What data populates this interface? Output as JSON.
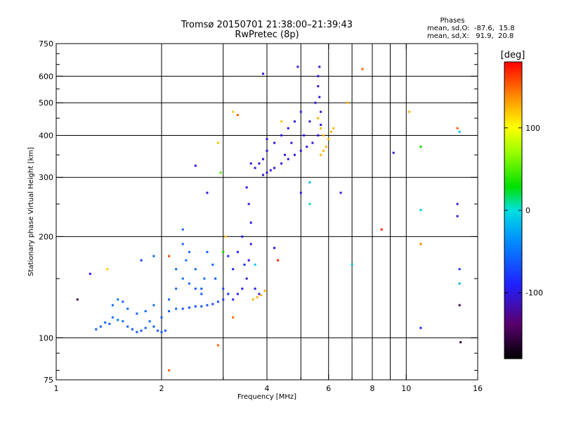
{
  "chart_data": {
    "type": "scatter",
    "title": "Tromsø 20150701 21:38:00–21:39:43",
    "subtitle": "RwPretec (8p)",
    "xlabel": "Frequency [MHz]",
    "ylabel": "Stationary phase Virtual Height [km]",
    "x_scale": "log",
    "y_scale": "log",
    "xlim": [
      1,
      16
    ],
    "ylim": [
      75,
      750
    ],
    "x_ticks": [
      1,
      2,
      4,
      6,
      8,
      10,
      16
    ],
    "x_tick_labels": [
      "1",
      "2",
      "4",
      "6",
      "8",
      "10",
      "16"
    ],
    "x_minor_ticks": [
      3,
      5,
      7,
      9
    ],
    "y_ticks": [
      75,
      100,
      200,
      300,
      400,
      500,
      600,
      750
    ],
    "y_tick_labels": [
      "75",
      "100",
      "200",
      "300",
      "400",
      "500",
      "600",
      "750"
    ],
    "y_minor_ticks": [
      80,
      90,
      150,
      250,
      350,
      450,
      550,
      650,
      700
    ],
    "grid": true,
    "legend": {
      "heading": "Phases",
      "lines": [
        "mean, sd,O:  -87.6,  15.8",
        "mean, sd,X:   91.9,  20.8"
      ],
      "placement": "top-right"
    },
    "colorbar": {
      "label": "[deg]",
      "range": [
        -180,
        180
      ],
      "ticks": [
        100,
        0,
        -100
      ],
      "tick_labels": [
        "100",
        "0",
        "-100"
      ],
      "colormap": "rainbow"
    },
    "series": [
      {
        "points": [
          [
            1.3,
            106,
            -60
          ],
          [
            1.34,
            108,
            -60
          ],
          [
            1.38,
            111,
            -55
          ],
          [
            1.42,
            110,
            -55
          ],
          [
            1.45,
            115,
            -50
          ],
          [
            1.5,
            113,
            -50
          ],
          [
            1.55,
            112,
            -55
          ],
          [
            1.6,
            108,
            -60
          ],
          [
            1.65,
            106,
            -65
          ],
          [
            1.7,
            104,
            -65
          ],
          [
            1.75,
            105,
            -65
          ],
          [
            1.8,
            107,
            -60
          ],
          [
            1.85,
            112,
            -55
          ],
          [
            1.9,
            108,
            -60
          ],
          [
            1.95,
            105,
            -65
          ],
          [
            2.0,
            104,
            -65
          ],
          [
            2.05,
            105,
            -65
          ],
          [
            1.45,
            125,
            -55
          ],
          [
            1.5,
            130,
            -50
          ],
          [
            1.55,
            128,
            -55
          ],
          [
            1.6,
            122,
            -55
          ],
          [
            1.7,
            118,
            -60
          ],
          [
            1.8,
            120,
            -55
          ],
          [
            1.9,
            125,
            -55
          ],
          [
            2.0,
            115,
            -60
          ],
          [
            2.1,
            120,
            -60
          ],
          [
            2.2,
            122,
            -60
          ],
          [
            2.3,
            122,
            -65
          ],
          [
            2.4,
            123,
            -65
          ],
          [
            2.5,
            124,
            -65
          ],
          [
            2.6,
            124,
            -65
          ],
          [
            2.7,
            125,
            -70
          ],
          [
            2.8,
            126,
            -70
          ],
          [
            2.9,
            128,
            -70
          ],
          [
            3.0,
            130,
            -75
          ],
          [
            2.2,
            140,
            -55
          ],
          [
            2.3,
            150,
            -50
          ],
          [
            2.4,
            145,
            -55
          ],
          [
            2.5,
            140,
            -60
          ],
          [
            2.6,
            135,
            -60
          ],
          [
            2.1,
            130,
            -55
          ],
          [
            2.2,
            160,
            -55
          ],
          [
            2.35,
            170,
            -50
          ],
          [
            2.5,
            160,
            -55
          ],
          [
            2.65,
            150,
            -55
          ],
          [
            2.3,
            210,
            -55
          ],
          [
            2.3,
            190,
            -55
          ],
          [
            2.4,
            180,
            -55
          ],
          [
            2.7,
            180,
            -60
          ],
          [
            2.8,
            165,
            -60
          ],
          [
            2.6,
            140,
            -60
          ],
          [
            2.85,
            150,
            -65
          ],
          [
            3.0,
            140,
            -70
          ],
          [
            3.1,
            135,
            -80
          ],
          [
            3.2,
            130,
            -85
          ],
          [
            3.3,
            135,
            -90
          ],
          [
            3.4,
            140,
            -95
          ],
          [
            3.5,
            150,
            -100
          ],
          [
            3.55,
            170,
            -100
          ],
          [
            3.6,
            190,
            -100
          ],
          [
            3.6,
            220,
            -100
          ],
          [
            3.55,
            250,
            -100
          ],
          [
            3.5,
            280,
            -100
          ],
          [
            3.45,
            165,
            -95
          ],
          [
            3.4,
            200,
            -95
          ],
          [
            3.3,
            180,
            -95
          ],
          [
            3.2,
            160,
            -90
          ],
          [
            3.1,
            175,
            -85
          ],
          [
            3.7,
            140,
            -95
          ],
          [
            3.8,
            135,
            -100
          ],
          [
            3.65,
            130,
            125
          ],
          [
            3.75,
            132,
            125
          ],
          [
            3.85,
            134,
            125
          ],
          [
            3.95,
            138,
            125
          ],
          [
            3.9,
            305,
            -100
          ],
          [
            4.0,
            310,
            -100
          ],
          [
            4.1,
            315,
            -100
          ],
          [
            4.2,
            320,
            -100
          ],
          [
            4.4,
            330,
            -100
          ],
          [
            4.6,
            340,
            -100
          ],
          [
            4.8,
            350,
            -100
          ],
          [
            5.0,
            360,
            -100
          ],
          [
            5.2,
            370,
            -100
          ],
          [
            5.4,
            380,
            -105
          ],
          [
            5.6,
            400,
            -105
          ],
          [
            5.7,
            430,
            -105
          ],
          [
            5.7,
            470,
            -105
          ],
          [
            5.65,
            520,
            -105
          ],
          [
            5.6,
            560,
            -105
          ],
          [
            5.6,
            600,
            -105
          ],
          [
            5.65,
            640,
            -105
          ],
          [
            3.9,
            340,
            -100
          ],
          [
            4.0,
            360,
            -100
          ],
          [
            4.0,
            390,
            -100
          ],
          [
            4.2,
            380,
            -100
          ],
          [
            4.4,
            400,
            -100
          ],
          [
            4.6,
            420,
            -100
          ],
          [
            4.8,
            440,
            -100
          ],
          [
            5.0,
            470,
            -100
          ],
          [
            3.8,
            330,
            -100
          ],
          [
            3.7,
            320,
            -100
          ],
          [
            3.6,
            330,
            -100
          ],
          [
            4.5,
            350,
            -100
          ],
          [
            4.7,
            380,
            -100
          ],
          [
            5.1,
            400,
            -100
          ],
          [
            5.3,
            440,
            -100
          ],
          [
            5.5,
            500,
            -105
          ],
          [
            5.7,
            350,
            125
          ],
          [
            5.8,
            360,
            125
          ],
          [
            5.9,
            370,
            125
          ],
          [
            6.0,
            390,
            125
          ],
          [
            6.1,
            410,
            125
          ],
          [
            6.2,
            420,
            125
          ],
          [
            5.8,
            400,
            125
          ],
          [
            5.7,
            420,
            125
          ],
          [
            5.6,
            450,
            125
          ],
          [
            1.15,
            130,
            -150
          ],
          [
            1.25,
            155,
            -100
          ],
          [
            1.4,
            160,
            120
          ],
          [
            1.75,
            170,
            -80
          ],
          [
            1.9,
            175,
            -55
          ],
          [
            2.1,
            175,
            160
          ],
          [
            2.1,
            80,
            150
          ],
          [
            2.9,
            95,
            150
          ],
          [
            3.0,
            180,
            30
          ],
          [
            3.05,
            200,
            120
          ],
          [
            3.2,
            115,
            150
          ],
          [
            2.5,
            325,
            -100
          ],
          [
            2.7,
            270,
            -100
          ],
          [
            2.9,
            380,
            120
          ],
          [
            3.2,
            470,
            120
          ],
          [
            3.3,
            460,
            150
          ],
          [
            3.9,
            610,
            -100
          ],
          [
            4.2,
            185,
            -95
          ],
          [
            4.4,
            440,
            120
          ],
          [
            4.9,
            640,
            -100
          ],
          [
            5.0,
            270,
            -100
          ],
          [
            5.3,
            250,
            10
          ],
          [
            5.3,
            290,
            -20
          ],
          [
            6.5,
            270,
            -100
          ],
          [
            6.8,
            500,
            125
          ],
          [
            7.0,
            165,
            -10
          ],
          [
            7.5,
            630,
            150
          ],
          [
            8.5,
            210,
            170
          ],
          [
            9.2,
            355,
            -100
          ],
          [
            10.2,
            470,
            125
          ],
          [
            11.0,
            370,
            30
          ],
          [
            11.0,
            240,
            -10
          ],
          [
            11.0,
            190,
            140
          ],
          [
            11.0,
            107,
            -90
          ],
          [
            14.0,
            420,
            150
          ],
          [
            14.2,
            410,
            -10
          ],
          [
            14.0,
            250,
            -100
          ],
          [
            14.0,
            230,
            -100
          ],
          [
            14.2,
            160,
            -80
          ],
          [
            14.2,
            145,
            -20
          ],
          [
            14.2,
            125,
            -150
          ],
          [
            14.3,
            97,
            -160
          ],
          [
            2.95,
            310,
            50
          ],
          [
            3.7,
            165,
            -10
          ],
          [
            4.3,
            170,
            170
          ]
        ]
      }
    ]
  }
}
